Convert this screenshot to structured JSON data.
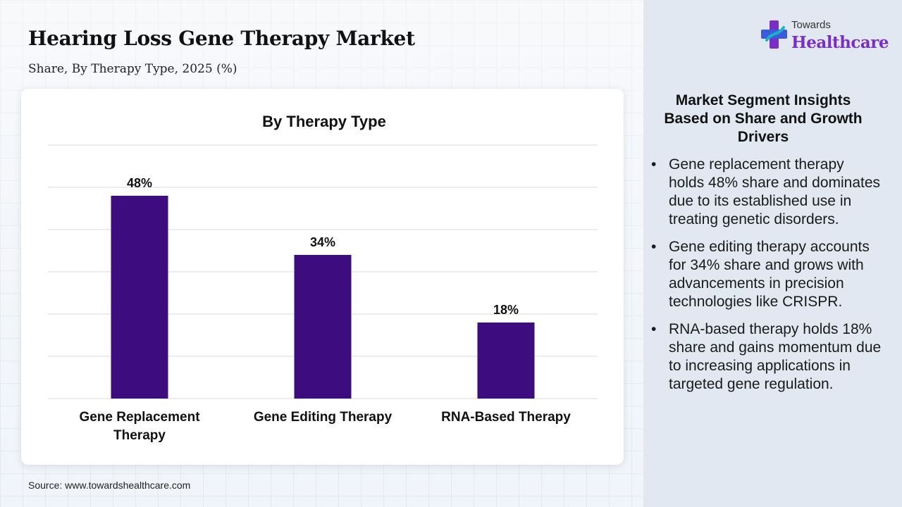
{
  "header": {
    "title": "Hearing Loss Gene Therapy Market",
    "subtitle": "Share, By Therapy Type, 2025 (%)"
  },
  "logo": {
    "line1": "Towards",
    "line2": "Healthcare"
  },
  "source": "Source: www.towardshealthcare.com",
  "insights": {
    "title": "Market Segment Insights Based on Share and Growth Drivers",
    "bullets": [
      "Gene replacement therapy holds 48% share and dominates due to its established use in treating genetic disorders.",
      "Gene editing therapy accounts for 34% share and grows with advancements in precision technologies like CRISPR.",
      "RNA-based therapy holds 18% share and gains momentum due to increasing applications in targeted gene regulation."
    ]
  },
  "colors": {
    "bar": "#3d0c7e",
    "brand_purple": "#7a2ec9",
    "brand_blue": "#3b5bdb",
    "brand_teal": "#19b3c9"
  },
  "chart_data": {
    "type": "bar",
    "title": "By Therapy Type",
    "categories": [
      "Gene Replacement Therapy",
      "Gene Editing Therapy",
      "RNA-Based Therapy"
    ],
    "category_lines": [
      [
        "Gene Replacement",
        "Therapy"
      ],
      [
        "Gene Editing Therapy"
      ],
      [
        "RNA-Based Therapy"
      ]
    ],
    "values": [
      48,
      34,
      18
    ],
    "data_labels": [
      "48%",
      "34%",
      "18%"
    ],
    "ylim": [
      0,
      60
    ],
    "gridlines": [
      0,
      10,
      20,
      30,
      40,
      50,
      60
    ],
    "xlabel": "",
    "ylabel": "",
    "grid": true,
    "legend": "none"
  }
}
